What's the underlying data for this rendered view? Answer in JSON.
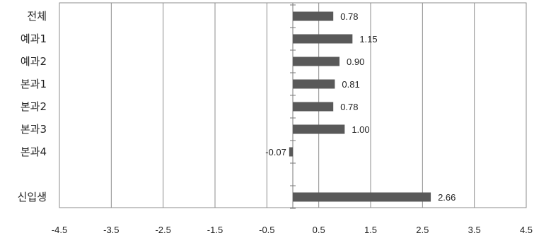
{
  "chart_data": {
    "type": "bar",
    "orientation": "horizontal",
    "categories": [
      "전체",
      "예과1",
      "예과2",
      "본과1",
      "본과2",
      "본과3",
      "본과4",
      "",
      "신입생"
    ],
    "values": [
      0.78,
      1.15,
      0.9,
      0.81,
      0.78,
      1.0,
      -0.07,
      null,
      2.66
    ],
    "value_labels": [
      "0.78",
      "1.15",
      "0.90",
      "0.81",
      "0.78",
      "1.00",
      "-0.07",
      "",
      "2.66"
    ],
    "x_ticks": [
      -4.5,
      -3.5,
      -2.5,
      -1.5,
      -0.5,
      0.5,
      1.5,
      2.5,
      3.5,
      4.5
    ],
    "x_tick_labels": [
      "-4.5",
      "-3.5",
      "-2.5",
      "-1.5",
      "-0.5",
      "0.5",
      "1.5",
      "2.5",
      "3.5",
      "4.5"
    ],
    "xlim": [
      -4.5,
      4.5
    ],
    "grid": "vertical",
    "legend": "none",
    "bar_color": "#595959",
    "grid_color": "#8c8c8c"
  }
}
